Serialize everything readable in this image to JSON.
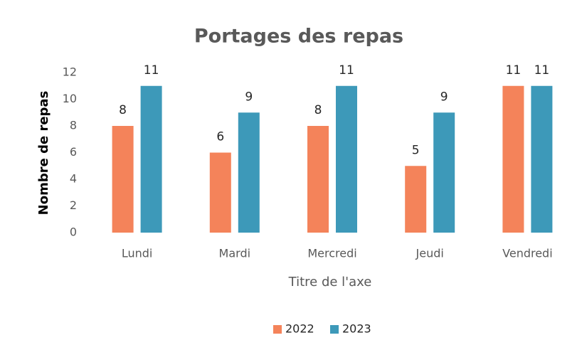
{
  "chart_data": {
    "type": "bar",
    "title": "Portages des repas",
    "x_label": "Titre de l'axe",
    "y_label": "Nombre de repas",
    "categories": [
      "Lundi",
      "Mardi",
      "Mercredi",
      "Jeudi",
      "Vendredi"
    ],
    "series": [
      {
        "name": "2022",
        "color": "#f4835a",
        "values": [
          8,
          6,
          8,
          5,
          11
        ]
      },
      {
        "name": "2023",
        "color": "#3d99b9",
        "values": [
          11,
          9,
          11,
          9,
          11
        ]
      }
    ],
    "ylim": [
      0,
      12
    ],
    "yticks": [
      0,
      2,
      4,
      6,
      8,
      10,
      12
    ],
    "grid": false,
    "legend": "bottom"
  }
}
